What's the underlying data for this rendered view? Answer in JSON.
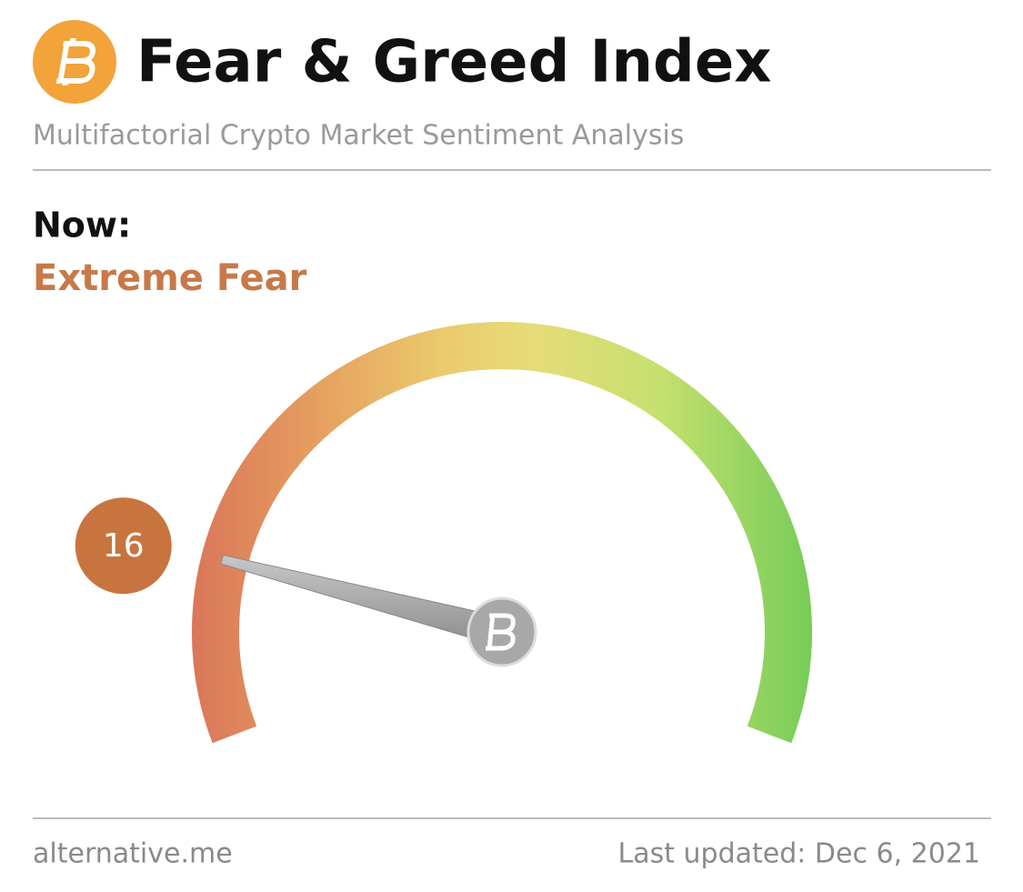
{
  "chart_data": {
    "type": "gauge",
    "title": "Fear & Greed Index",
    "subtitle": "Multifactorial Crypto Market Sentiment Analysis",
    "now_label": "Now:",
    "status": "Extreme Fear",
    "value": 16,
    "ylim": [
      0,
      100
    ],
    "source": "alternative.me",
    "updated": "Last updated: Dec 6, 2021"
  }
}
